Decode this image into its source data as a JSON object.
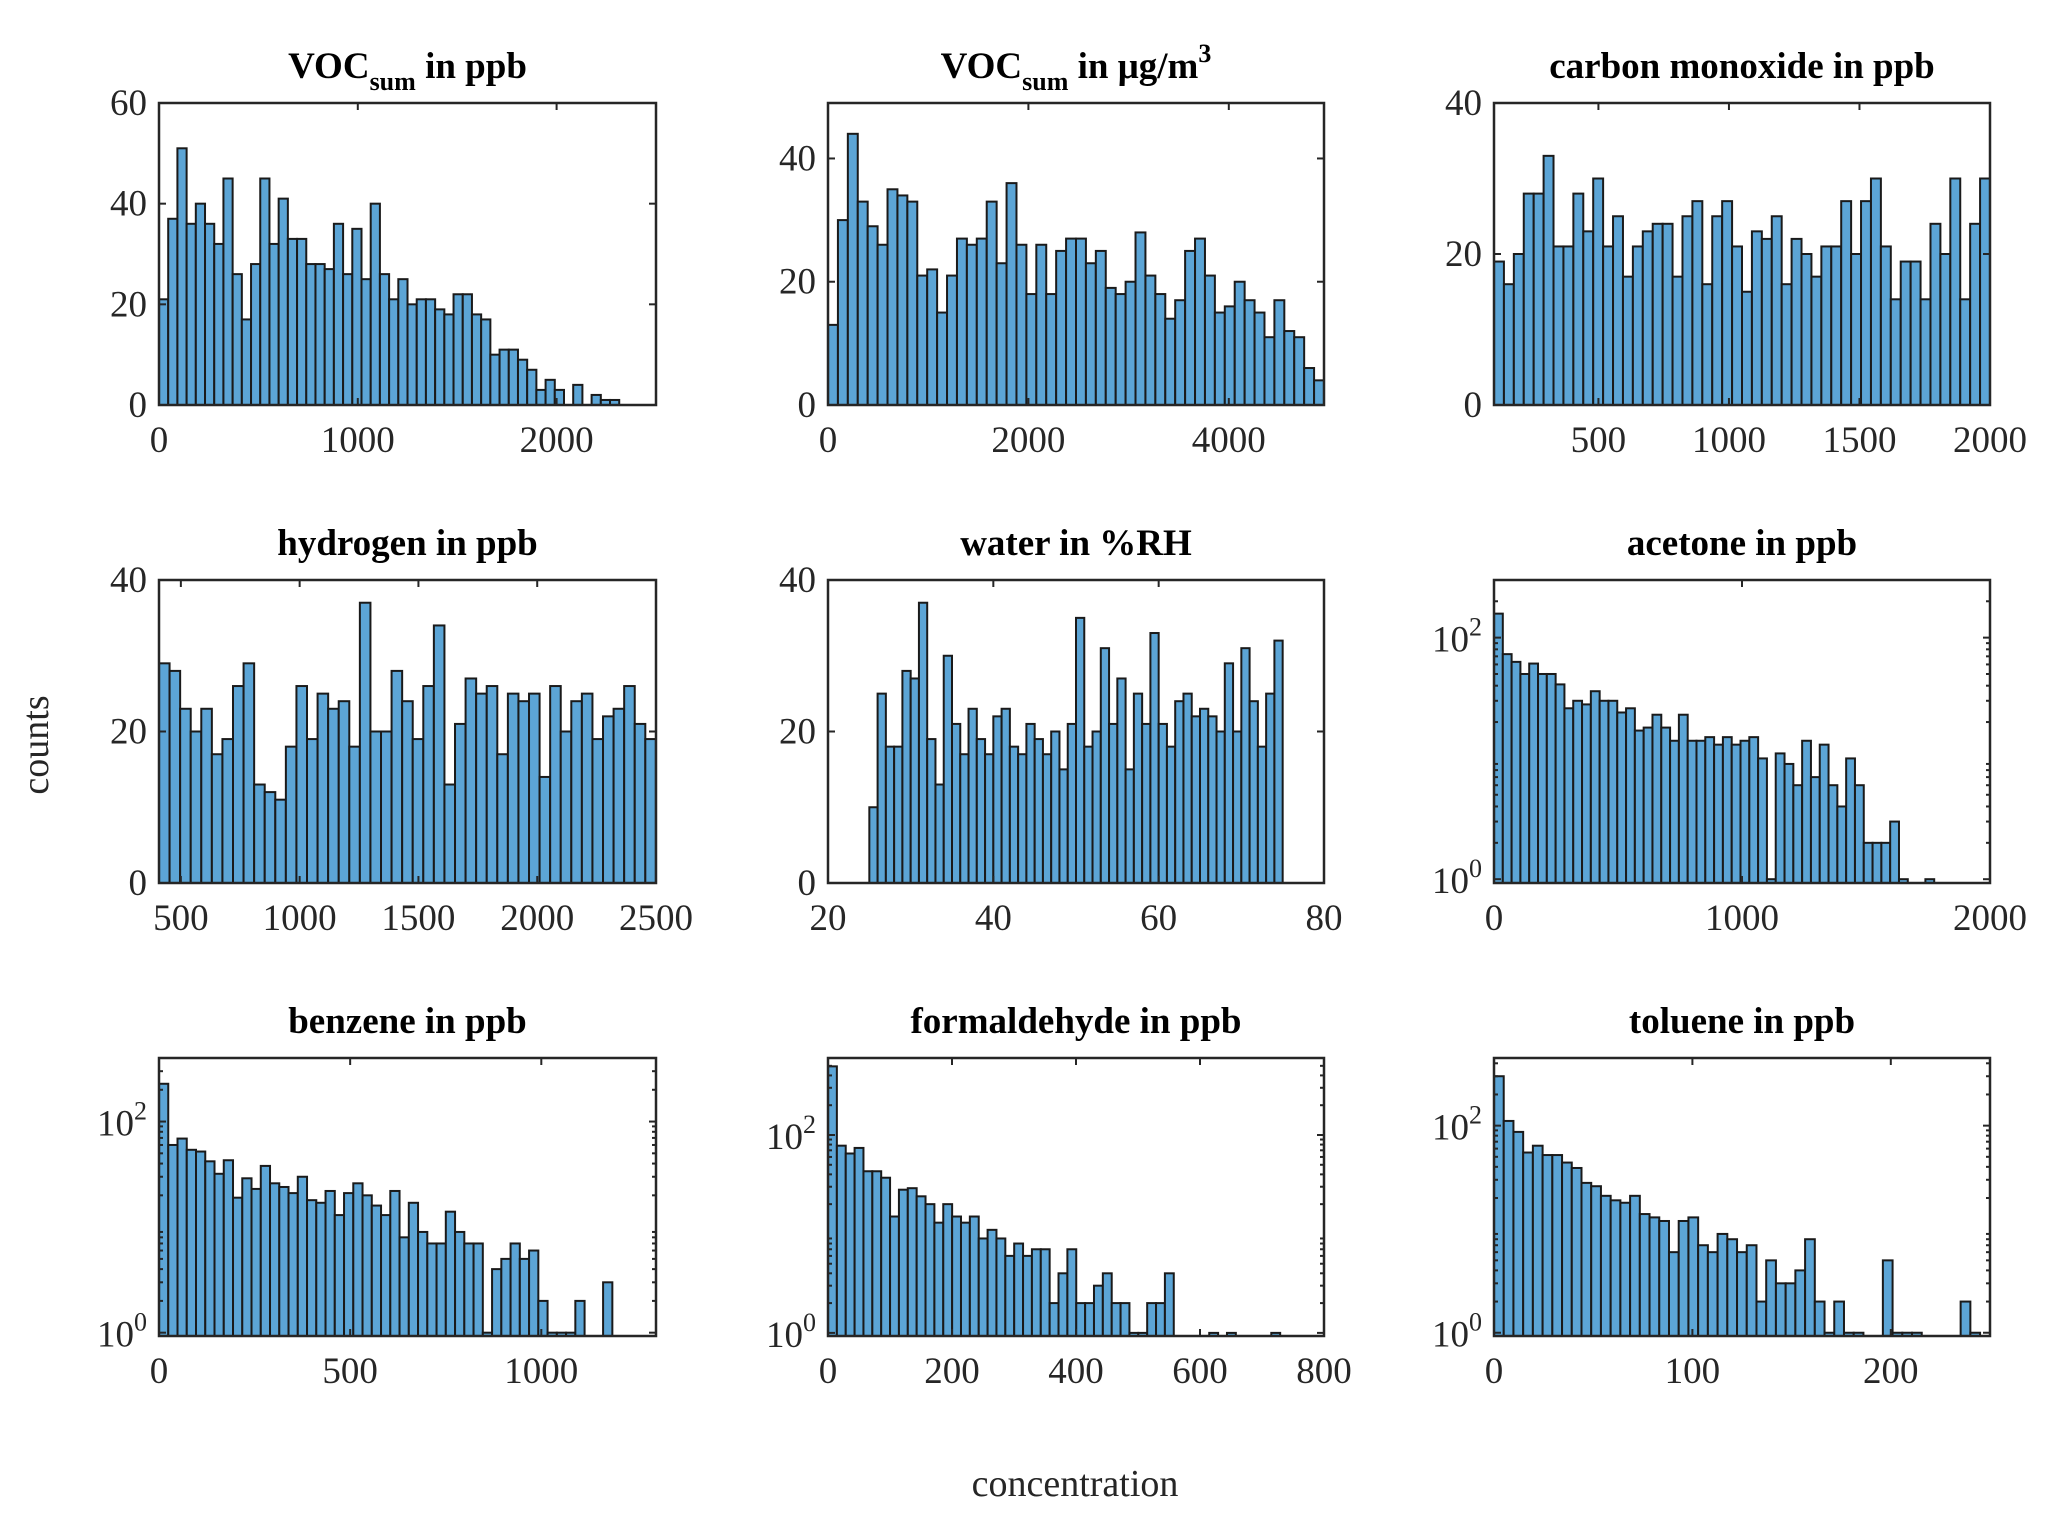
{
  "figure": {
    "ylabel": "counts",
    "xlabel": "concentration",
    "bar_color": "#5ca5d6",
    "bar_edge_color": "#1a1a1a",
    "axis_color": "#262626"
  },
  "chart_data": [
    {
      "type": "bar",
      "id": "voc-sum-ppb",
      "title_main": "VOC",
      "title_sub": "sum",
      "title_rest": " in ppb",
      "yscale": "linear",
      "xlim": [
        0,
        2500
      ],
      "ylim": [
        0,
        60
      ],
      "xticks": [
        0,
        1000,
        2000
      ],
      "xtick_labels": [
        "0",
        "1000",
        "2000"
      ],
      "yticks": [
        0,
        20,
        40,
        60
      ],
      "ytick_labels": [
        "0",
        "20",
        "40",
        "60"
      ],
      "bin_start": 0,
      "bin_width": 46.3,
      "values": [
        21,
        37,
        51,
        36,
        40,
        36,
        32,
        45,
        26,
        17,
        28,
        45,
        32,
        41,
        33,
        33,
        28,
        28,
        27,
        36,
        26,
        35,
        25,
        40,
        26,
        21,
        25,
        20,
        21,
        21,
        19,
        18,
        22,
        22,
        18,
        17,
        10,
        11,
        11,
        9,
        7,
        3,
        5,
        3,
        0,
        4,
        0,
        2,
        1,
        1
      ]
    },
    {
      "type": "bar",
      "id": "voc-sum-ugm3",
      "title_main": "VOC",
      "title_sub": "sum",
      "title_rest": " in μg/m",
      "title_sup": "3",
      "yscale": "linear",
      "xlim": [
        0,
        4950
      ],
      "ylim": [
        0,
        49
      ],
      "xticks": [
        0,
        2000,
        4000
      ],
      "xtick_labels": [
        "0",
        "2000",
        "4000"
      ],
      "yticks": [
        0,
        20,
        40
      ],
      "ytick_labels": [
        "0",
        "20",
        "40"
      ],
      "bin_start": 0,
      "bin_width": 99,
      "values": [
        13,
        30,
        44,
        33,
        29,
        26,
        35,
        34,
        33,
        21,
        22,
        15,
        21,
        27,
        26,
        27,
        33,
        23,
        36,
        26,
        18,
        26,
        18,
        25,
        27,
        27,
        23,
        25,
        19,
        18,
        20,
        28,
        21,
        18,
        14,
        17,
        25,
        27,
        21,
        15,
        16,
        20,
        17,
        15,
        11,
        17,
        12,
        11,
        6,
        4
      ]
    },
    {
      "type": "bar",
      "id": "carbon-monoxide-ppb",
      "title_main": "carbon monoxide in ppb",
      "yscale": "linear",
      "xlim": [
        100,
        2000
      ],
      "ylim": [
        0,
        40
      ],
      "xticks": [
        500,
        1000,
        1500,
        2000
      ],
      "xtick_labels": [
        "500",
        "1000",
        "1500",
        "2000"
      ],
      "yticks": [
        0,
        20,
        40
      ],
      "ytick_labels": [
        "0",
        "20",
        "40"
      ],
      "bin_start": 100,
      "bin_width": 38,
      "values": [
        19,
        16,
        20,
        28,
        28,
        33,
        21,
        21,
        28,
        23,
        30,
        21,
        25,
        17,
        21,
        23,
        24,
        24,
        17,
        25,
        27,
        16,
        25,
        27,
        21,
        15,
        23,
        22,
        25,
        16,
        22,
        20,
        17,
        21,
        21,
        27,
        20,
        27,
        30,
        21,
        14,
        19,
        19,
        14,
        24,
        20,
        30,
        14,
        24,
        30
      ]
    },
    {
      "type": "bar",
      "id": "hydrogen-ppb",
      "title_main": "hydrogen in ppb",
      "yscale": "linear",
      "xlim": [
        408,
        2500
      ],
      "ylim": [
        0,
        40
      ],
      "xticks": [
        500,
        1000,
        1500,
        2000,
        2500
      ],
      "xtick_labels": [
        "500",
        "1000",
        "1500",
        "2000",
        "2500"
      ],
      "yticks": [
        0,
        20,
        40
      ],
      "ytick_labels": [
        "0",
        "20",
        "40"
      ],
      "bin_start": 408,
      "bin_width": 44.5,
      "values": [
        29,
        28,
        23,
        20,
        23,
        17,
        19,
        26,
        29,
        13,
        12,
        11,
        18,
        26,
        19,
        25,
        23,
        24,
        18,
        37,
        20,
        20,
        28,
        24,
        19,
        26,
        34,
        13,
        21,
        27,
        25,
        26,
        17,
        25,
        24,
        25,
        14,
        26,
        20,
        24,
        25,
        19,
        22,
        23,
        26,
        21,
        19
      ]
    },
    {
      "type": "bar",
      "id": "water-rh",
      "title_main": "water in %RH",
      "yscale": "linear",
      "xlim": [
        20,
        80
      ],
      "ylim": [
        0,
        40
      ],
      "xticks": [
        20,
        40,
        60,
        80
      ],
      "xtick_labels": [
        "20",
        "40",
        "60",
        "80"
      ],
      "yticks": [
        0,
        20,
        40
      ],
      "ytick_labels": [
        "0",
        "20",
        "40"
      ],
      "bin_start": 25,
      "bin_width": 1,
      "values": [
        10,
        25,
        18,
        18,
        28,
        27,
        37,
        19,
        13,
        30,
        21,
        17,
        23,
        19,
        17,
        22,
        23,
        18,
        17,
        21,
        19,
        17,
        20,
        15,
        21,
        35,
        18,
        20,
        31,
        21,
        27,
        15,
        25,
        21,
        33,
        21,
        18,
        24,
        25,
        22,
        23,
        22,
        20,
        29,
        20,
        31,
        24,
        18,
        25,
        32
      ]
    },
    {
      "type": "bar",
      "id": "acetone-ppb",
      "title_main": "acetone in ppb",
      "yscale": "log",
      "xlim": [
        0,
        2000
      ],
      "ylim": [
        0.93,
        300
      ],
      "xticks": [
        0,
        1000,
        2000
      ],
      "xtick_labels": [
        "0",
        "1000",
        "2000"
      ],
      "yticks": [
        1,
        100
      ],
      "ytick_labels": [
        [
          "10",
          "0"
        ],
        [
          "10",
          "2"
        ]
      ],
      "bin_start": 0,
      "bin_width": 35.5,
      "values": [
        158,
        73,
        63,
        50,
        61,
        50,
        50,
        41,
        26,
        30,
        28,
        36,
        30,
        30,
        24,
        26,
        17,
        18,
        23,
        18,
        14,
        23,
        14,
        14,
        15,
        13,
        15,
        13,
        14,
        15,
        10,
        1,
        11,
        9,
        6,
        14,
        7,
        13,
        6,
        4,
        10,
        6,
        2,
        2,
        2,
        3,
        1,
        0,
        0,
        1
      ]
    },
    {
      "type": "bar",
      "id": "benzene-ppb",
      "title_main": "benzene in ppb",
      "yscale": "log",
      "xlim": [
        0,
        1300
      ],
      "ylim": [
        0.93,
        400
      ],
      "xticks": [
        0,
        500,
        1000
      ],
      "xtick_labels": [
        "0",
        "500",
        "1000"
      ],
      "yticks": [
        1,
        100
      ],
      "ytick_labels": [
        [
          "10",
          "0"
        ],
        [
          "10",
          "2"
        ]
      ],
      "bin_start": 0,
      "bin_width": 24.2,
      "values": [
        228,
        60,
        69,
        54,
        52,
        42,
        32,
        43,
        19,
        29,
        23,
        38,
        26,
        24,
        21,
        30,
        18,
        17,
        22,
        13,
        21,
        26,
        20,
        16,
        13,
        22,
        8,
        17,
        9,
        7,
        7,
        14,
        9,
        7,
        7,
        1,
        4,
        5,
        7,
        5,
        6,
        2,
        1,
        1,
        1,
        2,
        0,
        0,
        3
      ]
    },
    {
      "type": "bar",
      "id": "formaldehyde-ppb",
      "title_main": "formaldehyde in ppb",
      "yscale": "log",
      "xlim": [
        0,
        800
      ],
      "ylim": [
        0.93,
        600
      ],
      "xticks": [
        0,
        200,
        400,
        600,
        800
      ],
      "xtick_labels": [
        "0",
        "200",
        "400",
        "600",
        "800"
      ],
      "yticks": [
        1,
        100
      ],
      "ytick_labels": [
        [
          "10",
          "0"
        ],
        [
          "10",
          "2"
        ]
      ],
      "bin_start": 0,
      "bin_width": 14.3,
      "values": [
        494,
        78,
        65,
        74,
        43,
        43,
        37,
        15,
        28,
        29,
        24,
        20,
        13,
        20,
        15,
        13,
        15,
        9,
        11,
        9,
        6,
        8,
        6,
        7,
        7,
        2,
        4,
        7,
        2,
        2,
        3,
        4,
        2,
        2,
        1,
        1,
        2,
        2,
        4,
        0,
        0,
        0,
        0,
        1,
        0,
        1,
        0,
        0,
        0,
        0,
        1
      ]
    },
    {
      "type": "bar",
      "id": "toluene-ppb",
      "title_main": "toluene in ppb",
      "yscale": "log",
      "xlim": [
        0,
        250
      ],
      "ylim": [
        0.93,
        450
      ],
      "xticks": [
        0,
        100,
        200
      ],
      "xtick_labels": [
        "0",
        "100",
        "200"
      ],
      "yticks": [
        1,
        100
      ],
      "ytick_labels": [
        [
          "10",
          "0"
        ],
        [
          "10",
          "2"
        ]
      ],
      "bin_start": 0,
      "bin_width": 4.9,
      "values": [
        300,
        111,
        87,
        55,
        64,
        52,
        52,
        44,
        39,
        28,
        26,
        21,
        19,
        18,
        21,
        14,
        13,
        12,
        6,
        12,
        13,
        7,
        6,
        9,
        8,
        6,
        7,
        2,
        5,
        3,
        3,
        4,
        8,
        2,
        1,
        2,
        1,
        1,
        0,
        0,
        5,
        1,
        1,
        1,
        0,
        0,
        0,
        0,
        2,
        1
      ]
    }
  ]
}
